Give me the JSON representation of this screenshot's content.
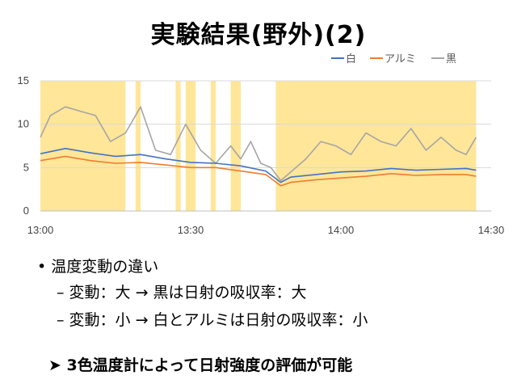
{
  "title": "実験結果(野外)(2)",
  "bullets": {
    "main": "• 温度変動の違い",
    "sub1": "– 変動：大 → 黒は日射の吸収率：大",
    "sub2": "– 変動：小 → 白とアルミは日射の吸収率：小",
    "conclusion": "➤ 3色温度計によって日射強度の評価が可能"
  },
  "colors": {
    "white_series": "#4472c4",
    "aluminum_series": "#ed7d31",
    "black_series": "#a5a5a5",
    "sunny_band": "#ffe699"
  },
  "chart_data": {
    "type": "line",
    "title": "",
    "xlabel": "",
    "ylabel": "",
    "x_ticks": [
      "13:00",
      "13:30",
      "14:00",
      "14:30"
    ],
    "y_ticks": [
      0,
      5,
      10,
      15
    ],
    "xlim": [
      "13:00",
      "14:30"
    ],
    "ylim": [
      0,
      15
    ],
    "grid": "horizontal",
    "legend_position": "top-right",
    "series": [
      {
        "name": "白",
        "color": "#4472c4",
        "x": [
          "13:00",
          "13:05",
          "13:10",
          "13:15",
          "13:20",
          "13:25",
          "13:30",
          "13:35",
          "13:40",
          "13:45",
          "13:48",
          "13:50",
          "13:55",
          "14:00",
          "14:05",
          "14:10",
          "14:15",
          "14:20",
          "14:25",
          "14:27"
        ],
        "y": [
          6.6,
          7.2,
          6.7,
          6.3,
          6.5,
          6.0,
          5.6,
          5.5,
          5.2,
          4.6,
          3.3,
          3.9,
          4.2,
          4.5,
          4.6,
          4.9,
          4.7,
          4.8,
          4.9,
          4.7
        ]
      },
      {
        "name": "アルミ",
        "color": "#ed7d31",
        "x": [
          "13:00",
          "13:05",
          "13:10",
          "13:15",
          "13:20",
          "13:25",
          "13:30",
          "13:35",
          "13:40",
          "13:45",
          "13:48",
          "13:50",
          "13:55",
          "14:00",
          "14:05",
          "14:10",
          "14:15",
          "14:20",
          "14:25",
          "14:27"
        ],
        "y": [
          5.8,
          6.3,
          5.8,
          5.5,
          5.6,
          5.3,
          5.0,
          5.0,
          4.6,
          4.2,
          2.9,
          3.3,
          3.6,
          3.8,
          4.0,
          4.3,
          4.1,
          4.2,
          4.2,
          4.0
        ]
      },
      {
        "name": "黒",
        "color": "#a5a5a5",
        "x": [
          "13:00",
          "13:02",
          "13:05",
          "13:08",
          "13:11",
          "13:14",
          "13:17",
          "13:20",
          "13:23",
          "13:26",
          "13:29",
          "13:32",
          "13:35",
          "13:38",
          "13:40",
          "13:42",
          "13:44",
          "13:46",
          "13:48",
          "13:50",
          "13:53",
          "13:56",
          "13:59",
          "14:02",
          "14:05",
          "14:08",
          "14:11",
          "14:14",
          "14:17",
          "14:20",
          "14:23",
          "14:25",
          "14:27"
        ],
        "y": [
          8.5,
          11.0,
          12.0,
          11.5,
          11.0,
          8.0,
          9.0,
          12.0,
          7.0,
          6.5,
          10.0,
          7.0,
          5.5,
          7.5,
          6.0,
          8.0,
          5.5,
          5.0,
          3.5,
          4.5,
          6.0,
          8.0,
          7.5,
          6.5,
          9.0,
          8.0,
          7.5,
          9.5,
          7.0,
          8.5,
          7.0,
          6.5,
          8.5
        ]
      }
    ],
    "shaded_bands": [
      [
        "13:00",
        "13:17"
      ],
      [
        "13:19",
        "13:20"
      ],
      [
        "13:27",
        "13:28"
      ],
      [
        "13:29",
        "13:31"
      ],
      [
        "13:34",
        "13:35"
      ],
      [
        "13:38",
        "13:40"
      ],
      [
        "13:47",
        "14:27"
      ]
    ]
  }
}
